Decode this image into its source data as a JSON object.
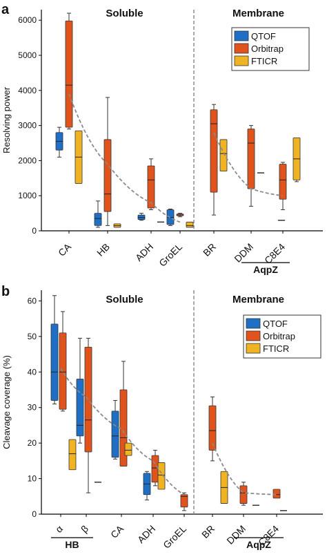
{
  "colors": {
    "QTOF": "#1f6fc5",
    "Orbitrap": "#e0531d",
    "FTICR": "#f0b323",
    "trend": "#8a8a8a",
    "divider": "#8a8a8a"
  },
  "chart_data": [
    {
      "panel_label": "a",
      "type": "box",
      "ylabel": "Resolving power",
      "ylim": [
        0,
        6300
      ],
      "yticks": [
        0,
        1000,
        2000,
        3000,
        4000,
        5000,
        6000
      ],
      "regions": [
        "Soluble",
        "Membrane"
      ],
      "legend": {
        "position": "top-right",
        "entries": [
          "QTOF",
          "Orbitrap",
          "FTICR"
        ]
      },
      "group_bracket": {
        "label": "AqpZ",
        "categories": [
          "DDM",
          "C8E4"
        ]
      },
      "categories": [
        "CA",
        "HB",
        "ADH",
        "GroEL",
        "BR",
        "DDM",
        "C8E4"
      ],
      "series": [
        {
          "name": "QTOF",
          "boxes": [
            {
              "category": "CA",
              "min": 2100,
              "q1": 2300,
              "median": 2550,
              "q3": 2800,
              "max": 2950
            },
            {
              "category": "HB",
              "min": 100,
              "q1": 150,
              "median": 350,
              "q3": 500,
              "max": 850
            },
            {
              "category": "ADH",
              "min": 300,
              "q1": 320,
              "median": 380,
              "q3": 450,
              "max": 500
            },
            {
              "category": "GroEL",
              "min": 150,
              "q1": 180,
              "median": 380,
              "q3": 600,
              "max": 620
            }
          ]
        },
        {
          "name": "Orbitrap",
          "boxes": [
            {
              "category": "CA",
              "min": 2900,
              "q1": 2950,
              "median": 4150,
              "q3": 5980,
              "max": 6200
            },
            {
              "category": "HB",
              "min": 150,
              "q1": 550,
              "median": 1050,
              "q3": 2600,
              "max": 3800
            },
            {
              "category": "ADH",
              "min": 600,
              "q1": 650,
              "median": 1450,
              "q3": 1850,
              "max": 2050
            },
            {
              "category": "GroEL",
              "min": 400,
              "q1": 430,
              "median": 450,
              "q3": 480,
              "max": 500
            },
            {
              "category": "BR",
              "min": 450,
              "q1": 1100,
              "median": 3050,
              "q3": 3450,
              "max": 3600
            },
            {
              "category": "DDM",
              "min": 700,
              "q1": 1200,
              "median": 2500,
              "q3": 2900,
              "max": 3000
            },
            {
              "category": "C8E4",
              "min": 600,
              "q1": 900,
              "median": 1450,
              "q3": 1900,
              "max": 1950
            }
          ]
        },
        {
          "name": "FTICR",
          "boxes": [
            {
              "category": "CA",
              "min": 1350,
              "q1": 1350,
              "median": 2100,
              "q3": 2850,
              "max": 2850
            },
            {
              "category": "HB",
              "min": 100,
              "q1": 100,
              "median": 150,
              "q3": 200,
              "max": 200
            },
            {
              "category": "ADH",
              "min": 250,
              "q1": 250,
              "median": 250,
              "q3": 250,
              "max": 250
            },
            {
              "category": "GroEL",
              "min": 100,
              "q1": 100,
              "median": 150,
              "q3": 250,
              "max": 250
            },
            {
              "category": "BR",
              "min": 1700,
              "q1": 1700,
              "median": 2200,
              "q3": 2600,
              "max": 2600
            },
            {
              "category": "DDM",
              "min": 1650,
              "q1": 1650,
              "median": 1650,
              "q3": 1650,
              "max": 1650
            },
            {
              "category": "C8E4",
              "min": 300,
              "q1": 300,
              "median": 300,
              "q3": 300,
              "max": 300
            },
            {
              "category": "C8E4 ",
              "min": 1400,
              "q1": 1450,
              "median": 2050,
              "q3": 2650,
              "max": 2650
            }
          ]
        }
      ],
      "trend_soluble": [
        [
          0,
          3900
        ],
        [
          1,
          1900
        ],
        [
          2,
          800
        ],
        [
          3,
          250
        ]
      ],
      "trend_membrane": [
        [
          4,
          2800
        ],
        [
          5,
          1200
        ],
        [
          6,
          1000
        ]
      ]
    },
    {
      "panel_label": "b",
      "type": "box",
      "ylabel": "Cleavage coverage (%)",
      "ylim": [
        0,
        63
      ],
      "yticks": [
        0,
        10,
        20,
        30,
        40,
        50,
        60
      ],
      "regions": [
        "Soluble",
        "Membrane"
      ],
      "legend": {
        "position": "top-right",
        "entries": [
          "QTOF",
          "Orbitrap",
          "FTICR"
        ]
      },
      "group_brackets": [
        {
          "label": "HB",
          "categories": [
            "α",
            "β"
          ]
        },
        {
          "label": "AqpZ",
          "categories": [
            "DDM",
            "C8E4"
          ]
        }
      ],
      "categories": [
        "α",
        "β",
        "CA",
        "ADH",
        "GroEL",
        "BR",
        "DDM",
        "C8E4"
      ],
      "series": [
        {
          "name": "QTOF",
          "boxes": [
            {
              "category": "α",
              "min": 31,
              "q1": 32,
              "median": 40,
              "q3": 53.5,
              "max": 61.5
            },
            {
              "category": "β",
              "min": 20,
              "q1": 22,
              "median": 25,
              "q3": 38,
              "max": 49.5
            },
            {
              "category": "CA",
              "min": 15.5,
              "q1": 16,
              "median": 22,
              "q3": 29,
              "max": 32
            },
            {
              "category": "ADH",
              "min": 4,
              "q1": 5.5,
              "median": 8.5,
              "q3": 11.5,
              "max": 12
            }
          ]
        },
        {
          "name": "Orbitrap",
          "boxes": [
            {
              "category": "α",
              "min": 29,
              "q1": 29.5,
              "median": 40,
              "q3": 51,
              "max": 57
            },
            {
              "category": "β",
              "min": 6,
              "q1": 17.5,
              "median": 26.5,
              "q3": 47,
              "max": 49.5
            },
            {
              "category": "CA",
              "min": 13.5,
              "q1": 13.5,
              "median": 21.5,
              "q3": 35,
              "max": 43
            },
            {
              "category": "ADH",
              "min": 8,
              "q1": 9,
              "median": 13,
              "q3": 16.5,
              "max": 18
            },
            {
              "category": "GroEL",
              "min": 1,
              "q1": 2,
              "median": 5,
              "q3": 5.5,
              "max": 6
            },
            {
              "category": "BR",
              "min": 15,
              "q1": 18,
              "median": 23.5,
              "q3": 30.5,
              "max": 33
            },
            {
              "category": "DDM",
              "min": 2.5,
              "q1": 3,
              "median": 6,
              "q3": 8,
              "max": 9
            },
            {
              "category": "C8E4",
              "min": 4.5,
              "q1": 4.5,
              "median": 5.5,
              "q3": 7,
              "max": 7
            }
          ]
        },
        {
          "name": "FTICR",
          "boxes": [
            {
              "category": "α",
              "min": 12.5,
              "q1": 12.5,
              "median": 17,
              "q3": 21,
              "max": 21
            },
            {
              "category": "β",
              "min": 9,
              "q1": 9,
              "median": 9,
              "q3": 9,
              "max": 9
            },
            {
              "category": "CA",
              "min": 16.5,
              "q1": 16.5,
              "median": 18,
              "q3": 20,
              "max": 20
            },
            {
              "category": "ADH",
              "min": 7,
              "q1": 7,
              "median": 11,
              "q3": 14.5,
              "max": 14.5
            },
            {
              "category": "BR",
              "min": 3,
              "q1": 3,
              "median": 7.5,
              "q3": 12,
              "max": 12
            },
            {
              "category": "DDM",
              "min": 2.5,
              "q1": 2.5,
              "median": 2.5,
              "q3": 2.5,
              "max": 2.5
            },
            {
              "category": "C8E4",
              "min": 1,
              "q1": 1,
              "median": 1,
              "q3": 1,
              "max": 1
            }
          ]
        }
      ],
      "trend_soluble": [
        [
          0,
          41
        ],
        [
          1,
          33
        ],
        [
          2,
          24
        ],
        [
          3,
          15
        ],
        [
          4,
          5.5
        ]
      ],
      "trend_membrane": [
        [
          5,
          20
        ],
        [
          6,
          6
        ],
        [
          7,
          5.5
        ]
      ]
    }
  ]
}
